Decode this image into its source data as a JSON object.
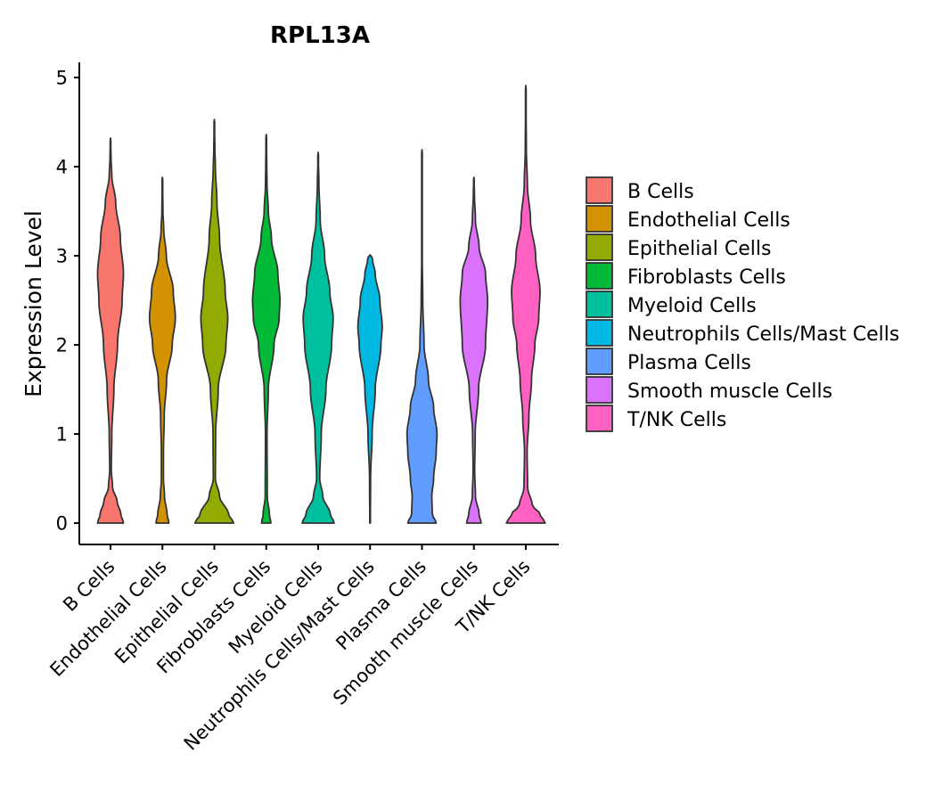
{
  "chart_data": {
    "type": "violin",
    "title": "RPL13A",
    "xlabel": "",
    "ylabel": "Expression Level",
    "ylim": [
      -0.23,
      5.17
    ],
    "yticks": [
      0,
      1,
      2,
      3,
      4,
      5
    ],
    "categories": [
      "B Cells",
      "Endothelial Cells",
      "Epithelial Cells",
      "Fibroblasts Cells",
      "Myeloid Cells",
      "Neutrophils Cells/Mast Cells",
      "Plasma Cells",
      "Smooth muscle Cells",
      "T/NK Cells"
    ],
    "colors": [
      "#F8766D",
      "#D39200",
      "#93AA00",
      "#00BA38",
      "#00C19F",
      "#00B9E3",
      "#619CFF",
      "#DB72FB",
      "#FF61C3"
    ],
    "max_values": [
      4.32,
      3.88,
      4.53,
      4.36,
      4.16,
      3.0,
      4.19,
      3.88,
      4.91
    ],
    "violins": [
      {
        "name": "B Cells",
        "profile": [
          [
            0,
            0.5
          ],
          [
            0.1,
            0.4
          ],
          [
            0.25,
            0.25
          ],
          [
            0.4,
            0.08
          ],
          [
            0.6,
            0.03
          ],
          [
            1.0,
            0.05
          ],
          [
            1.5,
            0.13
          ],
          [
            2.0,
            0.27
          ],
          [
            2.5,
            0.45
          ],
          [
            2.8,
            0.5
          ],
          [
            3.2,
            0.38
          ],
          [
            3.6,
            0.2
          ],
          [
            3.9,
            0.05
          ],
          [
            4.1,
            0.02
          ],
          [
            4.32,
            0
          ]
        ]
      },
      {
        "name": "Endothelial Cells",
        "profile": [
          [
            0,
            0.25
          ],
          [
            0.1,
            0.18
          ],
          [
            0.3,
            0.08
          ],
          [
            0.5,
            0.04
          ],
          [
            0.8,
            0.04
          ],
          [
            1.2,
            0.07
          ],
          [
            1.6,
            0.16
          ],
          [
            2.0,
            0.38
          ],
          [
            2.3,
            0.5
          ],
          [
            2.6,
            0.42
          ],
          [
            3.0,
            0.15
          ],
          [
            3.3,
            0.05
          ],
          [
            3.5,
            0.02
          ],
          [
            3.88,
            0
          ]
        ]
      },
      {
        "name": "Epithelial Cells",
        "profile": [
          [
            0,
            0.75
          ],
          [
            0.1,
            0.55
          ],
          [
            0.3,
            0.2
          ],
          [
            0.5,
            0.04
          ],
          [
            1.0,
            0.05
          ],
          [
            1.5,
            0.15
          ],
          [
            2.0,
            0.45
          ],
          [
            2.3,
            0.52
          ],
          [
            2.6,
            0.42
          ],
          [
            3.2,
            0.2
          ],
          [
            3.6,
            0.1
          ],
          [
            4.0,
            0.04
          ],
          [
            4.2,
            0.02
          ],
          [
            4.53,
            0
          ]
        ]
      },
      {
        "name": "Fibroblasts Cells",
        "profile": [
          [
            0,
            0.18
          ],
          [
            0.1,
            0.12
          ],
          [
            0.3,
            0.04
          ],
          [
            1.0,
            0.03
          ],
          [
            1.5,
            0.08
          ],
          [
            2.0,
            0.3
          ],
          [
            2.3,
            0.5
          ],
          [
            2.5,
            0.53
          ],
          [
            2.8,
            0.45
          ],
          [
            3.2,
            0.2
          ],
          [
            3.5,
            0.08
          ],
          [
            3.8,
            0.03
          ],
          [
            4.0,
            0.02
          ],
          [
            4.36,
            0
          ]
        ]
      },
      {
        "name": "Myeloid Cells",
        "profile": [
          [
            0,
            0.62
          ],
          [
            0.1,
            0.47
          ],
          [
            0.3,
            0.18
          ],
          [
            0.5,
            0.06
          ],
          [
            1.0,
            0.12
          ],
          [
            1.5,
            0.3
          ],
          [
            2.0,
            0.52
          ],
          [
            2.3,
            0.58
          ],
          [
            2.6,
            0.45
          ],
          [
            3.0,
            0.25
          ],
          [
            3.4,
            0.08
          ],
          [
            3.8,
            0.03
          ],
          [
            4.16,
            0
          ]
        ]
      },
      {
        "name": "Neutrophils Cells/Mast Cells",
        "profile": [
          [
            0,
            0.01
          ],
          [
            0.5,
            0.02
          ],
          [
            1.0,
            0.08
          ],
          [
            1.5,
            0.2
          ],
          [
            2.0,
            0.42
          ],
          [
            2.2,
            0.47
          ],
          [
            2.5,
            0.38
          ],
          [
            2.8,
            0.2
          ],
          [
            2.95,
            0.1
          ],
          [
            3.0,
            0.06
          ],
          [
            3.01,
            0
          ]
        ]
      },
      {
        "name": "Plasma Cells",
        "profile": [
          [
            0,
            0.55
          ],
          [
            0.1,
            0.4
          ],
          [
            0.3,
            0.38
          ],
          [
            0.5,
            0.45
          ],
          [
            0.8,
            0.55
          ],
          [
            1.0,
            0.58
          ],
          [
            1.3,
            0.45
          ],
          [
            1.6,
            0.25
          ],
          [
            2.0,
            0.08
          ],
          [
            2.5,
            0.03
          ],
          [
            3.0,
            0.01
          ],
          [
            3.5,
            0.01
          ],
          [
            4.19,
            0
          ]
        ]
      },
      {
        "name": "Smooth muscle Cells",
        "profile": [
          [
            0,
            0.28
          ],
          [
            0.1,
            0.2
          ],
          [
            0.3,
            0.06
          ],
          [
            0.6,
            0.03
          ],
          [
            1.0,
            0.05
          ],
          [
            1.5,
            0.18
          ],
          [
            2.0,
            0.45
          ],
          [
            2.5,
            0.53
          ],
          [
            2.8,
            0.45
          ],
          [
            3.1,
            0.2
          ],
          [
            3.4,
            0.06
          ],
          [
            3.7,
            0.02
          ],
          [
            3.88,
            0
          ]
        ]
      },
      {
        "name": "T/NK Cells",
        "profile": [
          [
            0,
            0.75
          ],
          [
            0.1,
            0.55
          ],
          [
            0.2,
            0.25
          ],
          [
            0.4,
            0.07
          ],
          [
            0.8,
            0.05
          ],
          [
            1.2,
            0.12
          ],
          [
            1.6,
            0.22
          ],
          [
            2.0,
            0.35
          ],
          [
            2.3,
            0.5
          ],
          [
            2.6,
            0.55
          ],
          [
            3.0,
            0.38
          ],
          [
            3.4,
            0.18
          ],
          [
            3.8,
            0.06
          ],
          [
            4.2,
            0.02
          ],
          [
            4.91,
            0
          ]
        ]
      }
    ],
    "legend": {
      "position": "right",
      "entries": [
        "B Cells",
        "Endothelial Cells",
        "Epithelial Cells",
        "Fibroblasts Cells",
        "Myeloid Cells",
        "Neutrophils Cells/Mast Cells",
        "Plasma Cells",
        "Smooth muscle Cells",
        "T/NK Cells"
      ]
    }
  }
}
